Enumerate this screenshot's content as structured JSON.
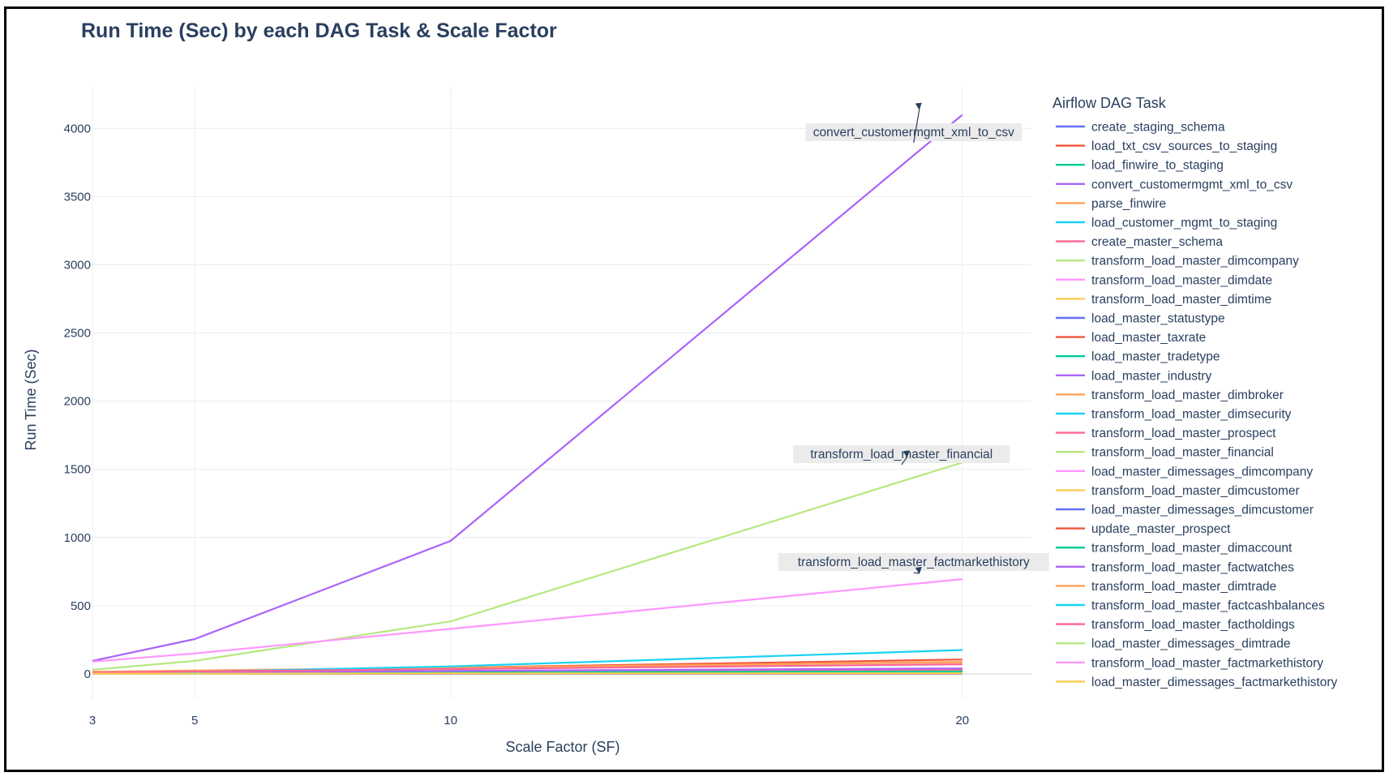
{
  "chart_data": {
    "type": "line",
    "title": "Run Time (Sec) by each DAG Task & Scale Factor",
    "xlabel": "Scale Factor (SF)",
    "ylabel": "Run Time (Sec)",
    "x": [
      3,
      5,
      10,
      20
    ],
    "xlim": [
      3,
      21.35
    ],
    "ylim": [
      -185,
      4300
    ],
    "xticks": [
      3,
      5,
      10,
      20
    ],
    "yticks": [
      0,
      500,
      1000,
      1500,
      2000,
      2500,
      3000,
      3500,
      4000
    ],
    "grid": true,
    "legend": {
      "title": "Airflow DAG Task",
      "placement": "right"
    },
    "series": [
      {
        "name": "create_staging_schema",
        "color": "#636efa",
        "values": [
          1,
          1,
          1,
          1
        ]
      },
      {
        "name": "load_txt_csv_sources_to_staging",
        "color": "#ef553b",
        "values": [
          14,
          22,
          45,
          105
        ]
      },
      {
        "name": "load_finwire_to_staging",
        "color": "#00cc96",
        "values": [
          5,
          8,
          16,
          32
        ]
      },
      {
        "name": "convert_customermgmt_xml_to_csv",
        "color": "#ab63fa",
        "values": [
          95,
          255,
          975,
          4100
        ]
      },
      {
        "name": "parse_finwire",
        "color": "#ffa15a",
        "values": [
          12,
          22,
          44,
          88
        ]
      },
      {
        "name": "load_customer_mgmt_to_staging",
        "color": "#19d3f3",
        "values": [
          3,
          6,
          12,
          24
        ]
      },
      {
        "name": "create_master_schema",
        "color": "#ff6692",
        "values": [
          1,
          1,
          1,
          1
        ]
      },
      {
        "name": "transform_load_master_dimcompany",
        "color": "#b6e880",
        "values": [
          2,
          3,
          5,
          8
        ]
      },
      {
        "name": "transform_load_master_dimdate",
        "color": "#ff97ff",
        "values": [
          3,
          3,
          3,
          3
        ]
      },
      {
        "name": "transform_load_master_dimtime",
        "color": "#fecb52",
        "values": [
          3,
          3,
          3,
          3
        ]
      },
      {
        "name": "load_master_statustype",
        "color": "#636efa",
        "values": [
          1,
          1,
          1,
          1
        ]
      },
      {
        "name": "load_master_taxrate",
        "color": "#ef553b",
        "values": [
          1,
          1,
          1,
          1
        ]
      },
      {
        "name": "load_master_tradetype",
        "color": "#00cc96",
        "values": [
          1,
          1,
          1,
          1
        ]
      },
      {
        "name": "load_master_industry",
        "color": "#ab63fa",
        "values": [
          1,
          1,
          1,
          1
        ]
      },
      {
        "name": "transform_load_master_dimbroker",
        "color": "#ffa15a",
        "values": [
          2,
          2,
          3,
          4
        ]
      },
      {
        "name": "transform_load_master_dimsecurity",
        "color": "#19d3f3",
        "values": [
          3,
          5,
          8,
          14
        ]
      },
      {
        "name": "transform_load_master_prospect",
        "color": "#ff6692",
        "values": [
          5,
          8,
          15,
          30
        ]
      },
      {
        "name": "transform_load_master_financial",
        "color": "#b6e880",
        "values": [
          30,
          95,
          385,
          1550
        ]
      },
      {
        "name": "load_master_dimessages_dimcompany",
        "color": "#ff97ff",
        "values": [
          2,
          2,
          3,
          4
        ]
      },
      {
        "name": "transform_load_master_dimcustomer",
        "color": "#fecb52",
        "values": [
          4,
          6,
          10,
          18
        ]
      },
      {
        "name": "load_master_dimessages_dimcustomer",
        "color": "#636efa",
        "values": [
          2,
          2,
          3,
          4
        ]
      },
      {
        "name": "update_master_prospect",
        "color": "#ef553b",
        "values": [
          3,
          5,
          8,
          14
        ]
      },
      {
        "name": "transform_load_master_dimaccount",
        "color": "#00cc96",
        "values": [
          4,
          6,
          10,
          18
        ]
      },
      {
        "name": "transform_load_master_factwatches",
        "color": "#ab63fa",
        "values": [
          8,
          12,
          22,
          40
        ]
      },
      {
        "name": "transform_load_master_dimtrade",
        "color": "#ffa15a",
        "values": [
          15,
          25,
          45,
          85
        ]
      },
      {
        "name": "transform_load_master_factcashbalances",
        "color": "#19d3f3",
        "values": [
          6,
          15,
          55,
          175
        ]
      },
      {
        "name": "transform_load_master_factholdings",
        "color": "#ff6692",
        "values": [
          10,
          18,
          35,
          70
        ]
      },
      {
        "name": "load_master_dimessages_dimtrade",
        "color": "#b6e880",
        "values": [
          2,
          2,
          3,
          4
        ]
      },
      {
        "name": "transform_load_master_factmarkethistory",
        "color": "#ff97ff",
        "values": [
          90,
          150,
          330,
          695
        ]
      },
      {
        "name": "load_master_dimessages_factmarkethistory",
        "color": "#fecb52",
        "values": [
          2,
          2,
          3,
          4
        ]
      }
    ],
    "annotations": [
      {
        "text": "convert_customermgmt_xml_to_csv",
        "x": 20,
        "y": 4100
      },
      {
        "text": "transform_load_master_financial",
        "x": 20,
        "y": 1550
      },
      {
        "text": "transform_load_master_factmarkethistory",
        "x": 20,
        "y": 695
      }
    ]
  }
}
